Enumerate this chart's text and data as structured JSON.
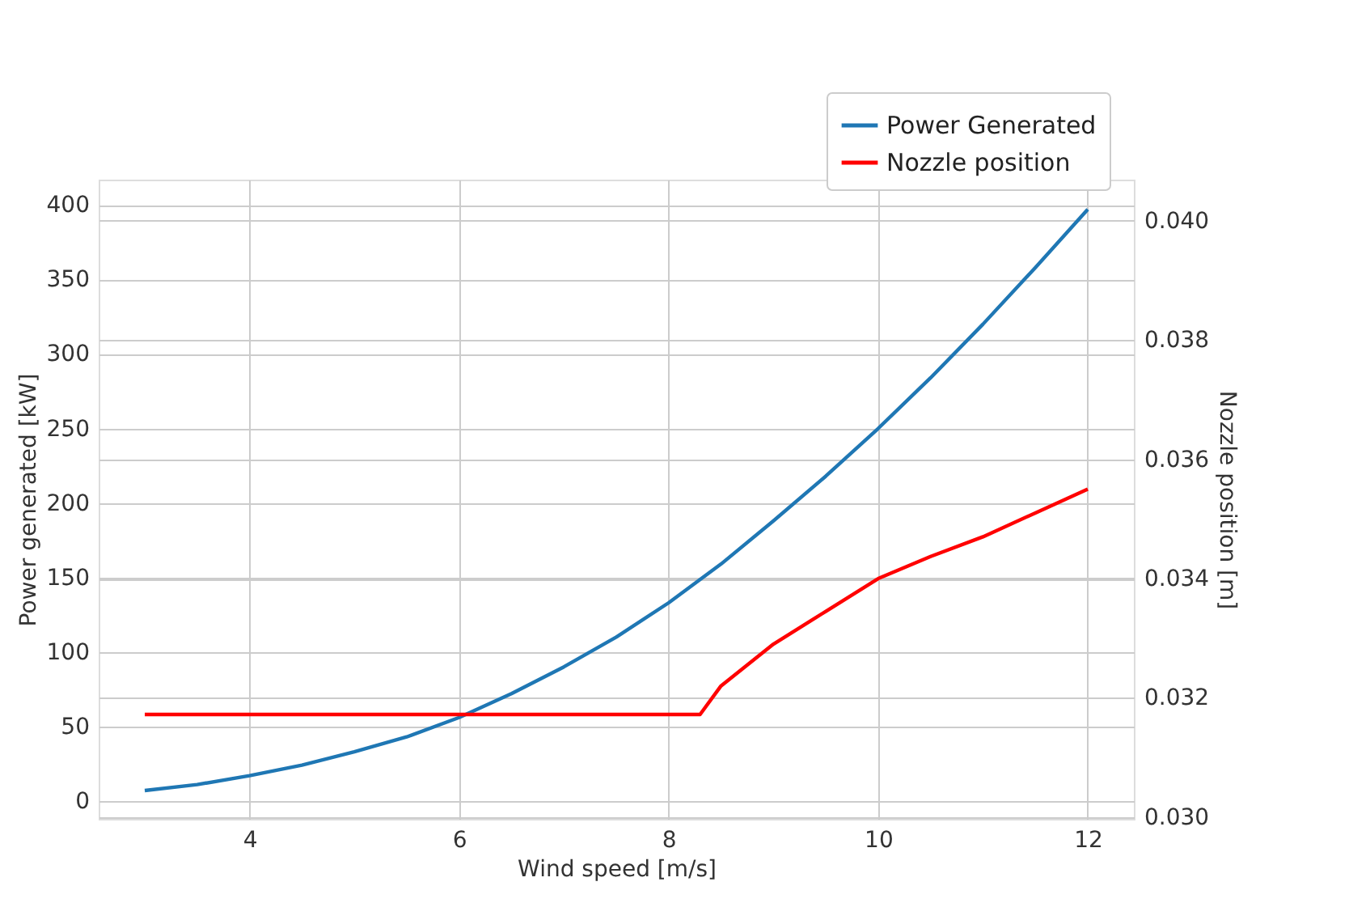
{
  "chart_data": {
    "type": "line",
    "xlabel": "Wind speed [m/s]",
    "ylabel": "Power generated [kW]",
    "y2label": "Nozzle position [m]",
    "xlim": [
      2.56,
      12.44
    ],
    "xticks": [
      4,
      6,
      8,
      10,
      12
    ],
    "ylim": [
      -12,
      417
    ],
    "yticks": [
      0,
      50,
      100,
      150,
      200,
      250,
      300,
      350,
      400
    ],
    "y2lim": [
      0.02997,
      0.04069
    ],
    "y2ticks": [
      {
        "value": 0.03,
        "label": "0.030"
      },
      {
        "value": 0.032,
        "label": "0.032"
      },
      {
        "value": 0.034,
        "label": "0.034"
      },
      {
        "value": 0.036,
        "label": "0.036"
      },
      {
        "value": 0.038,
        "label": "0.038"
      },
      {
        "value": 0.04,
        "label": "0.040"
      }
    ],
    "grid": true,
    "legend": "top right",
    "line_style": "solid",
    "marker": "none",
    "series": [
      {
        "name": "Power Generated",
        "color": "#1f77b4",
        "x": [
          3,
          3.5,
          4,
          4.5,
          5,
          5.5,
          6,
          6.5,
          7,
          7.5,
          8,
          8.5,
          9,
          9.5,
          10,
          10.5,
          11,
          11.5,
          12
        ],
        "values": [
          7,
          11,
          17,
          24,
          33,
          43,
          56,
          72,
          90,
          110,
          133,
          159,
          188,
          218,
          250,
          284,
          320,
          358,
          397
        ]
      },
      {
        "name": "Nozzle position",
        "color": "#ff0000",
        "axis": "y2",
        "x": [
          3,
          4,
          5,
          6,
          7,
          8,
          8.3,
          8.5,
          9,
          9.5,
          10,
          10.5,
          11,
          11.5,
          12
        ],
        "values": [
          0.03172,
          0.03172,
          0.03172,
          0.03172,
          0.03172,
          0.03172,
          0.03172,
          0.0322,
          0.0329,
          0.03345,
          0.034,
          0.03437,
          0.0347,
          0.0351,
          0.0355
        ]
      }
    ]
  }
}
